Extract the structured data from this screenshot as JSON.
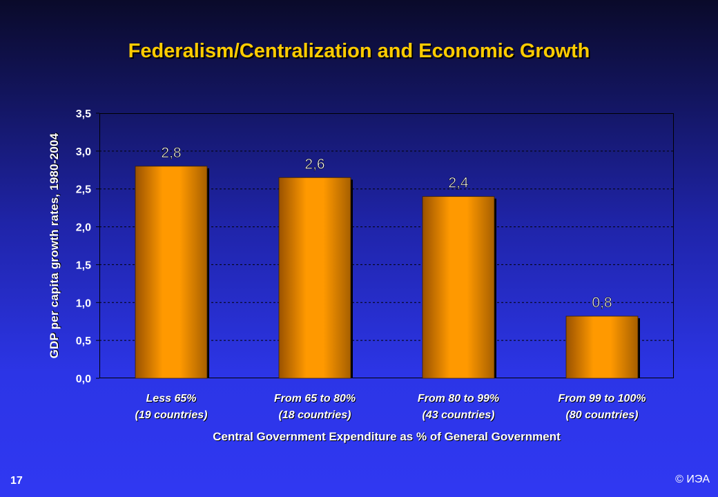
{
  "slide": {
    "title": "Federalism/Centralization and Economic Growth",
    "page_number": "17",
    "copyright": "© ИЭА"
  },
  "chart_data": {
    "type": "bar",
    "title": "Federalism/Centralization and Economic Growth",
    "categories": [
      [
        "Less 65%",
        "(19 countries)"
      ],
      [
        "From 65 to 80%",
        "(18 countries)"
      ],
      [
        "From 80 to 99%",
        "(43 countries)"
      ],
      [
        "From 99 to 100%",
        "(80 countries)"
      ]
    ],
    "values": [
      2.8,
      2.65,
      2.4,
      0.82
    ],
    "data_labels": [
      "2,8",
      "2,6",
      "2,4",
      "0,8"
    ],
    "ylim": [
      0,
      3.5
    ],
    "yticks": [
      0,
      0.5,
      1.0,
      1.5,
      2.0,
      2.5,
      3.0,
      3.5
    ],
    "ytick_labels": [
      "0,0",
      "0,5",
      "1,0",
      "1,5",
      "2,0",
      "2,5",
      "3,0",
      "3,5"
    ],
    "xlabel": "Central Government Expenditure as % of General Government",
    "ylabel": "GDP per capita growth rates, 1980-2004",
    "grid": "horizontal dashed",
    "colors": {
      "bar": "#ff9900",
      "bar_shade": "#a65f00",
      "text": "#ffffff",
      "title": "#ffcc00"
    }
  }
}
